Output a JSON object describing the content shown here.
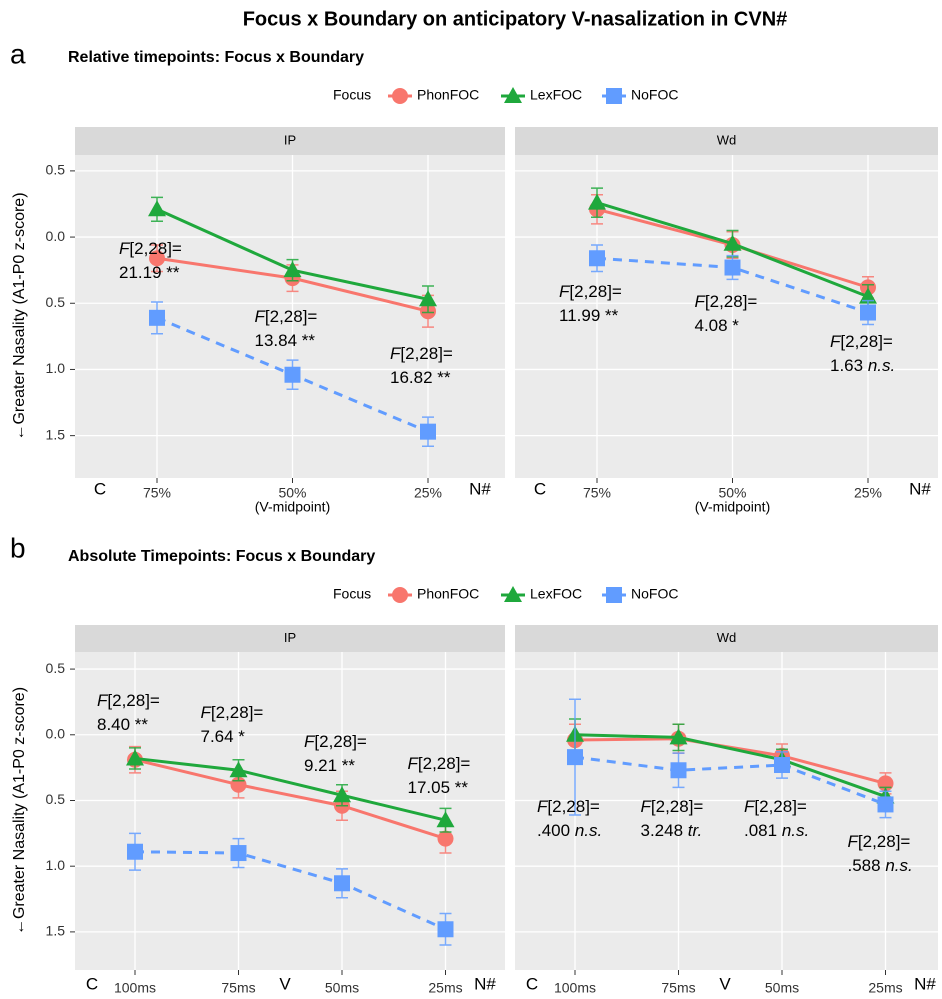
{
  "title": "Focus x Boundary on anticipatory V-nasalization in CVN#",
  "chart_data": [
    {
      "type": "line",
      "panel_label": "a",
      "title": "Relative timepoints: Focus x Boundary",
      "legend_title": "Focus",
      "ylabel": "←Greater Nasality (A1-P0 z-score)",
      "ylim": [
        1.82,
        -0.62
      ],
      "yticks": [
        {
          "value": -0.5,
          "label": "0.5"
        },
        {
          "value": 0,
          "label": "0.0"
        },
        0.5,
        {
          "value": 1,
          "label": "1.0"
        },
        1.5
      ],
      "categories": [
        "75%",
        "50%",
        "25%"
      ],
      "x_start_label": "C",
      "x_end_label": "N#",
      "x_note": "(V-midpoint)",
      "grid": true,
      "facets": [
        {
          "name": "IP",
          "series": [
            {
              "name": "PhonFOC",
              "color": "#f8766d",
              "marker": "circle",
              "dashed": false,
              "values": [
                0.16,
                0.31,
                0.56
              ],
              "errors": [
                0.1,
                0.1,
                0.12
              ]
            },
            {
              "name": "LexFOC",
              "color": "#1fa83c",
              "marker": "triangle",
              "dashed": false,
              "values": [
                -0.21,
                0.25,
                0.47
              ],
              "errors": [
                0.09,
                0.08,
                0.1
              ]
            },
            {
              "name": "NoFOC",
              "color": "#619cff",
              "marker": "square",
              "dashed": true,
              "values": [
                0.61,
                1.04,
                1.47
              ],
              "errors": [
                0.12,
                0.11,
                0.11
              ]
            }
          ],
          "annotations": [
            [
              "F[2,28]=",
              "21.19 **"
            ],
            [
              "F[2,28]=",
              "13.84 **"
            ],
            [
              "F[2,28]=",
              "16.82 **"
            ]
          ]
        },
        {
          "name": "Wd",
          "series": [
            {
              "name": "PhonFOC",
              "color": "#f8766d",
              "marker": "circle",
              "dashed": false,
              "values": [
                -0.21,
                0.06,
                0.38
              ],
              "errors": [
                0.11,
                0.1,
                0.08
              ]
            },
            {
              "name": "LexFOC",
              "color": "#1fa83c",
              "marker": "triangle",
              "dashed": false,
              "values": [
                -0.26,
                0.05,
                0.45
              ],
              "errors": [
                0.11,
                0.1,
                0.09
              ]
            },
            {
              "name": "NoFOC",
              "color": "#619cff",
              "marker": "square",
              "dashed": true,
              "values": [
                0.16,
                0.23,
                0.57
              ],
              "errors": [
                0.1,
                0.09,
                0.09
              ]
            }
          ],
          "annotations": [
            [
              "F[2,28]=",
              "11.99 **"
            ],
            [
              "F[2,28]=",
              "4.08 *"
            ],
            [
              "F[2,28]=",
              "1.63 n.s."
            ]
          ]
        }
      ]
    },
    {
      "type": "line",
      "panel_label": "b",
      "title": "Absolute Timepoints: Focus x Boundary",
      "legend_title": "Focus",
      "ylabel": "←Greater Nasality (A1-P0 z-score)",
      "ylim": [
        1.79,
        -0.63
      ],
      "yticks": [
        {
          "value": -0.5,
          "label": "0.5"
        },
        {
          "value": 0,
          "label": "0.0"
        },
        0.5,
        {
          "value": 1,
          "label": "1.0"
        },
        1.5
      ],
      "categories": [
        "100ms",
        "75ms",
        "50ms",
        "25ms"
      ],
      "x_start_label": "C",
      "x_end_label": "N#",
      "x_mid_label": "V",
      "grid": true,
      "facets": [
        {
          "name": "IP",
          "series": [
            {
              "name": "PhonFOC",
              "color": "#f8766d",
              "marker": "circle",
              "dashed": false,
              "values": [
                0.19,
                0.38,
                0.54,
                0.79
              ],
              "errors": [
                0.1,
                0.1,
                0.11,
                0.11
              ]
            },
            {
              "name": "LexFOC",
              "color": "#1fa83c",
              "marker": "triangle",
              "dashed": false,
              "values": [
                0.18,
                0.27,
                0.46,
                0.65
              ],
              "errors": [
                0.08,
                0.08,
                0.08,
                0.09
              ]
            },
            {
              "name": "NoFOC",
              "color": "#619cff",
              "marker": "square",
              "dashed": true,
              "values": [
                0.89,
                0.9,
                1.13,
                1.48
              ],
              "errors": [
                0.14,
                0.11,
                0.11,
                0.12
              ]
            }
          ],
          "annotations": [
            [
              "F[2,28]=",
              "8.40 **"
            ],
            [
              "F[2,28]=",
              "7.64 *"
            ],
            [
              "F[2,28]=",
              "9.21 **"
            ],
            [
              "F[2,28]=",
              "17.05 **"
            ]
          ]
        },
        {
          "name": "Wd",
          "series": [
            {
              "name": "PhonFOC",
              "color": "#f8766d",
              "marker": "circle",
              "dashed": false,
              "values": [
                0.04,
                0.03,
                0.16,
                0.37
              ],
              "errors": [
                0.12,
                0.11,
                0.09,
                0.08
              ]
            },
            {
              "name": "LexFOC",
              "color": "#1fa83c",
              "marker": "triangle",
              "dashed": false,
              "values": [
                0.0,
                0.02,
                0.19,
                0.47
              ],
              "errors": [
                0.12,
                0.1,
                0.08,
                0.07
              ]
            },
            {
              "name": "NoFOC",
              "color": "#619cff",
              "marker": "square",
              "dashed": true,
              "values": [
                0.17,
                0.27,
                0.23,
                0.53
              ],
              "errors": [
                0.44,
                0.13,
                0.1,
                0.1
              ]
            }
          ],
          "annotations": [
            [
              "F[2,28]=",
              ".400 n.s."
            ],
            [
              "F[2,28]=",
              "3.248 tr."
            ],
            [
              "F[2,28]=",
              ".081 n.s."
            ],
            [
              "F[2,28]=",
              ".588 n.s."
            ]
          ]
        }
      ]
    }
  ]
}
